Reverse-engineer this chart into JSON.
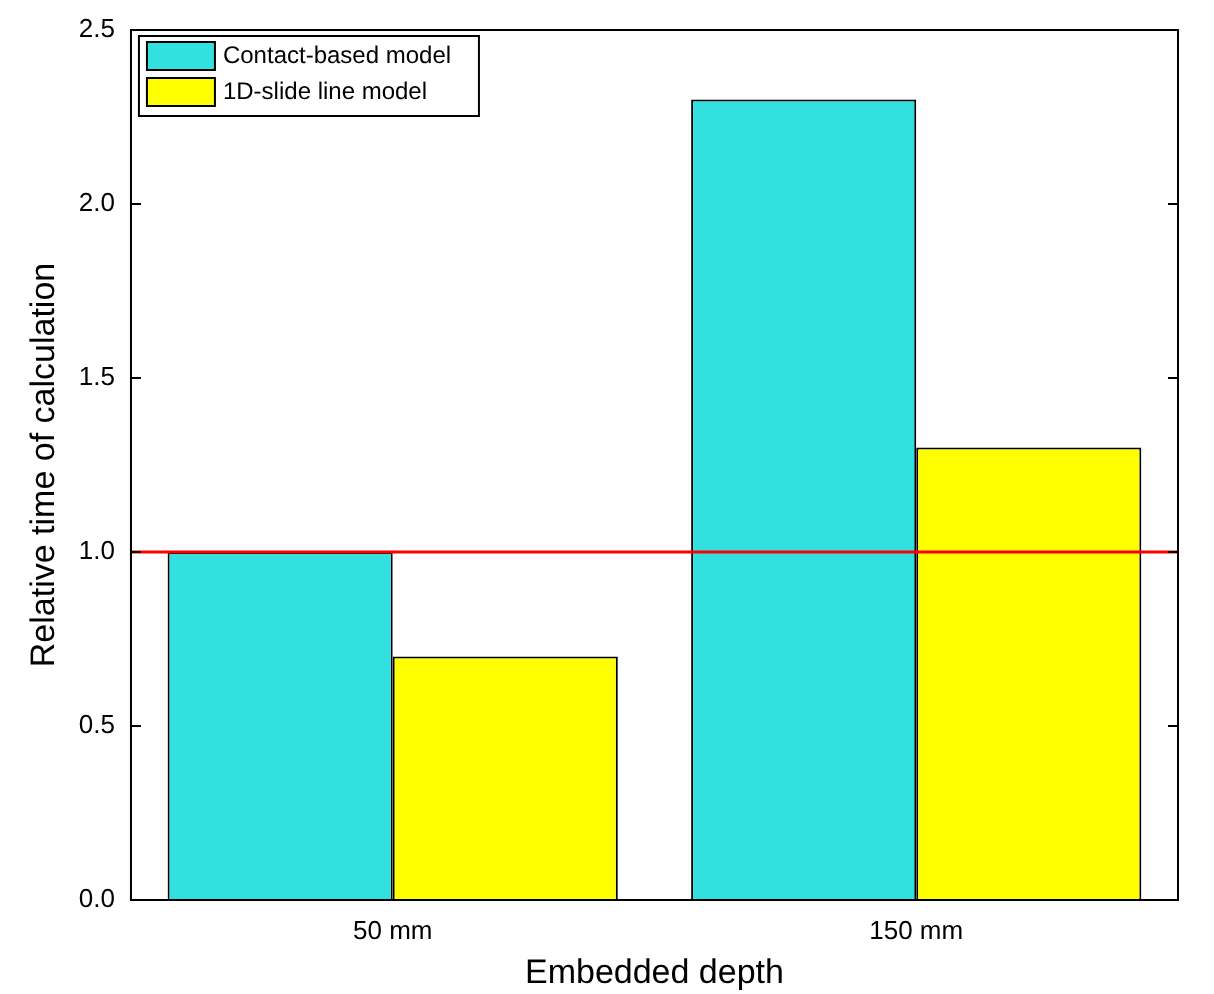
{
  "chart_data": {
    "type": "bar",
    "xlabel": "Embedded depth",
    "ylabel": "Relative time of calculation",
    "categories": [
      "50 mm",
      "150 mm"
    ],
    "series": [
      {
        "name": "Contact-based model",
        "color": "#33e0e0",
        "values": [
          1.0,
          2.3
        ]
      },
      {
        "name": "1D-slide line model",
        "color": "#ffff00",
        "values": [
          0.7,
          1.3
        ]
      }
    ],
    "ylim": [
      0,
      2.5
    ],
    "yticks": [
      {
        "value": 0,
        "label": "0.0"
      },
      {
        "value": 0.5,
        "label": "0.5"
      },
      {
        "value": 1,
        "label": "1.0"
      },
      {
        "value": 1.5,
        "label": "1.5"
      },
      {
        "value": 2,
        "label": "2.0"
      },
      {
        "value": 2.5,
        "label": "2.5"
      }
    ],
    "ref_lines": [
      {
        "axis": "y",
        "value": 1.0,
        "color": "#ff0000"
      }
    ],
    "grid": false,
    "legend": "top left"
  }
}
